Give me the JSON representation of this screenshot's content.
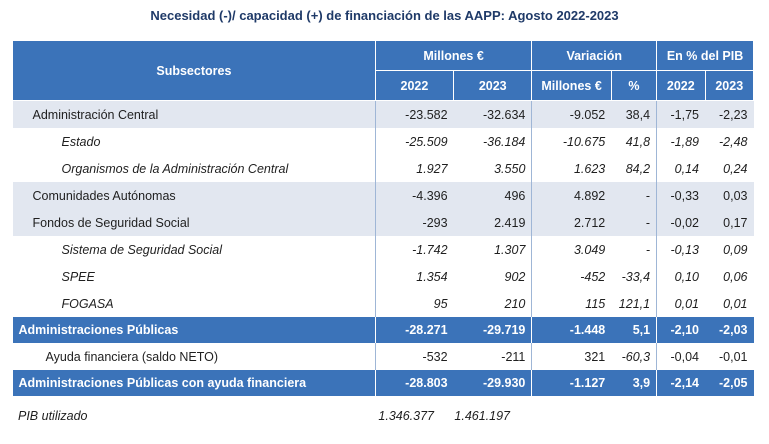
{
  "title": "Necesidad (-)/ capacidad (+) de financiación de las AAPP: Agosto 2022-2023",
  "header": {
    "subsectores": "Subsectores",
    "millones": "Millones €",
    "variacion": "Variación",
    "pib": "En % del PIB",
    "y2022": "2022",
    "y2023": "2023",
    "var_millones": "Millones €",
    "var_pct": "%",
    "pib2022": "2022",
    "pib2023": "2023"
  },
  "rows": [
    {
      "name": "Administración Central",
      "v2022": "-23.582",
      "v2023": "-32.634",
      "var": "-9.052",
      "pct": "38,4",
      "p2022": "-1,75",
      "p2023": "-2,23"
    },
    {
      "name": "Estado",
      "v2022": "-25.509",
      "v2023": "-36.184",
      "var": "-10.675",
      "pct": "41,8",
      "p2022": "-1,89",
      "p2023": "-2,48"
    },
    {
      "name": "Organismos de la Administración Central",
      "v2022": "1.927",
      "v2023": "3.550",
      "var": "1.623",
      "pct": "84,2",
      "p2022": "0,14",
      "p2023": "0,24"
    },
    {
      "name": "Comunidades Autónomas",
      "v2022": "-4.396",
      "v2023": "496",
      "var": "4.892",
      "pct": "-",
      "p2022": "-0,33",
      "p2023": "0,03"
    },
    {
      "name": "Fondos de Seguridad Social",
      "v2022": "-293",
      "v2023": "2.419",
      "var": "2.712",
      "pct": "-",
      "p2022": "-0,02",
      "p2023": "0,17"
    },
    {
      "name": "Sistema de Seguridad Social",
      "v2022": "-1.742",
      "v2023": "1.307",
      "var": "3.049",
      "pct": "-",
      "p2022": "-0,13",
      "p2023": "0,09"
    },
    {
      "name": "SPEE",
      "v2022": "1.354",
      "v2023": "902",
      "var": "-452",
      "pct": "-33,4",
      "p2022": "0,10",
      "p2023": "0,06"
    },
    {
      "name": "FOGASA",
      "v2022": "95",
      "v2023": "210",
      "var": "115",
      "pct": "121,1",
      "p2022": "0,01",
      "p2023": "0,01"
    },
    {
      "name": "Administraciones Públicas",
      "v2022": "-28.271",
      "v2023": "-29.719",
      "var": "-1.448",
      "pct": "5,1",
      "p2022": "-2,10",
      "p2023": "-2,03"
    },
    {
      "name": "Ayuda financiera (saldo NETO)",
      "v2022": "-532",
      "v2023": "-211",
      "var": "321",
      "pct": "-60,3",
      "p2022": "-0,04",
      "p2023": "-0,01"
    },
    {
      "name": "Administraciones Públicas con ayuda financiera",
      "v2022": "-28.803",
      "v2023": "-29.930",
      "var": "-1.127",
      "pct": "3,9",
      "p2022": "-2,14",
      "p2023": "-2,05"
    }
  ],
  "pib": {
    "label": "PIB utilizado",
    "v2022": "1.346.377",
    "v2023": "1.461.197"
  }
}
